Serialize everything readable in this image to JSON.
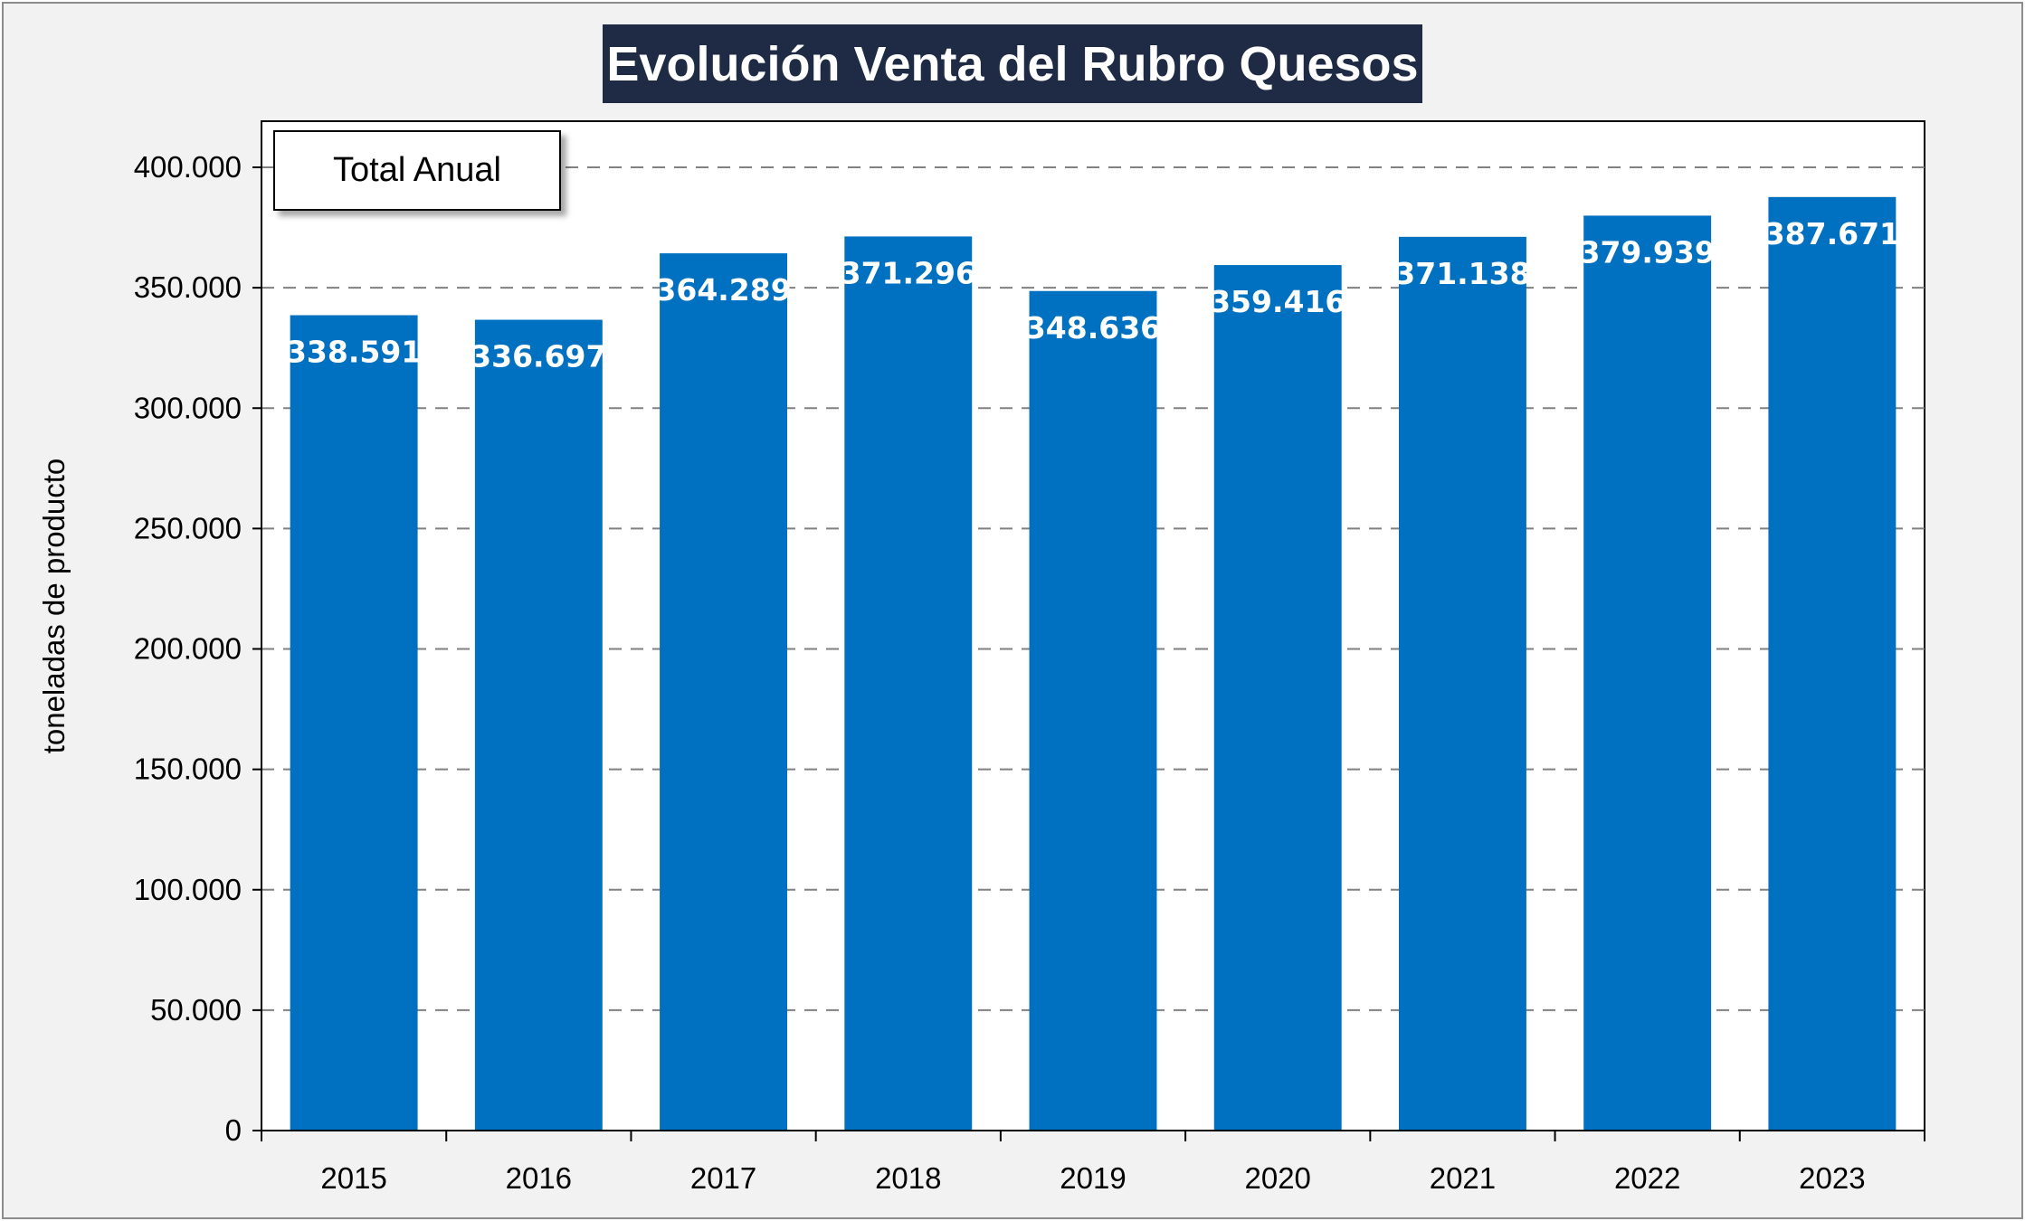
{
  "chart_data": {
    "type": "bar",
    "title": "Evolución Venta del Rubro Quesos",
    "legend_label": "Total Anual",
    "ylabel": "toneladas de producto",
    "xlabel": "",
    "categories": [
      "2015",
      "2016",
      "2017",
      "2018",
      "2019",
      "2020",
      "2021",
      "2022",
      "2023"
    ],
    "series": [
      {
        "name": "Total Anual",
        "values": [
          338591,
          336697,
          364289,
          371296,
          348636,
          359416,
          371138,
          379939,
          387671
        ],
        "labels": [
          "338.591",
          "336.697",
          "364.289",
          "371.296",
          "348.636",
          "359.416",
          "371.138",
          "379.939",
          "387.671"
        ]
      }
    ],
    "ylim": [
      0,
      400000
    ],
    "yticks": [
      0,
      50000,
      100000,
      150000,
      200000,
      250000,
      300000,
      350000,
      400000
    ],
    "ytick_labels": [
      "0",
      "50.000",
      "100.000",
      "150.000",
      "200.000",
      "250.000",
      "300.000",
      "350.000",
      "400.000"
    ],
    "grid": "horizontal dashed",
    "legend_position": "top-left",
    "bar_color": "#0070c0",
    "title_background": "#1f2a44"
  }
}
